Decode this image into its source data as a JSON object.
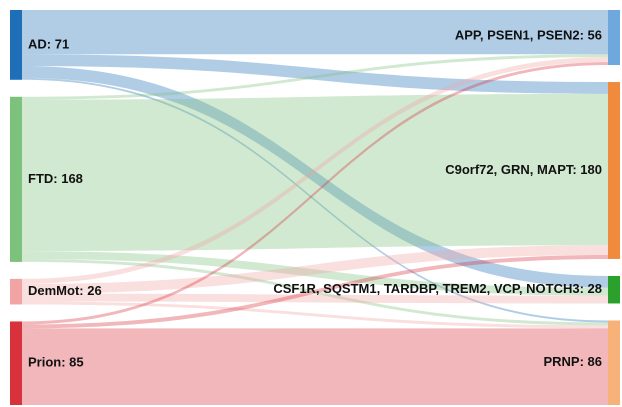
{
  "chart_data": {
    "type": "sankey",
    "nodes": [
      {
        "label": "AD: 71",
        "value": 71,
        "side": "left",
        "color": "#1f6fb8"
      },
      {
        "label": "FTD: 168",
        "value": 168,
        "side": "left",
        "color": "#7cc17c"
      },
      {
        "label": "DemMot: 26",
        "value": 26,
        "side": "left",
        "color": "#f2a3a3"
      },
      {
        "label": "Prion: 85",
        "value": 85,
        "side": "left",
        "color": "#d8323c"
      },
      {
        "label": "APP, PSEN1, PSEN2: 56",
        "value": 56,
        "side": "right",
        "color": "#6fa8dc"
      },
      {
        "label": "C9orf72, GRN, MAPT: 180",
        "value": 180,
        "side": "right",
        "color": "#f08a3c"
      },
      {
        "label": "CSF1R, SQSTM1, TARDBP, TREM2, VCP, NOTCH3: 28",
        "value": 28,
        "side": "right",
        "color": "#2ca02c"
      },
      {
        "label": "PRNP: 86",
        "value": 86,
        "side": "right",
        "color": "#f7b27a"
      }
    ],
    "links": [
      {
        "source": 0,
        "target": 4,
        "value": 45
      },
      {
        "source": 0,
        "target": 5,
        "value": 12
      },
      {
        "source": 0,
        "target": 6,
        "value": 12
      },
      {
        "source": 0,
        "target": 7,
        "value": 2
      },
      {
        "source": 1,
        "target": 4,
        "value": 3
      },
      {
        "source": 1,
        "target": 5,
        "value": 154
      },
      {
        "source": 1,
        "target": 6,
        "value": 8
      },
      {
        "source": 1,
        "target": 7,
        "value": 3
      },
      {
        "source": 2,
        "target": 4,
        "value": 5
      },
      {
        "source": 2,
        "target": 5,
        "value": 10
      },
      {
        "source": 2,
        "target": 6,
        "value": 8
      },
      {
        "source": 2,
        "target": 7,
        "value": 3
      },
      {
        "source": 3,
        "target": 4,
        "value": 3
      },
      {
        "source": 3,
        "target": 5,
        "value": 4
      },
      {
        "source": 3,
        "target": 7,
        "value": 78
      }
    ]
  }
}
